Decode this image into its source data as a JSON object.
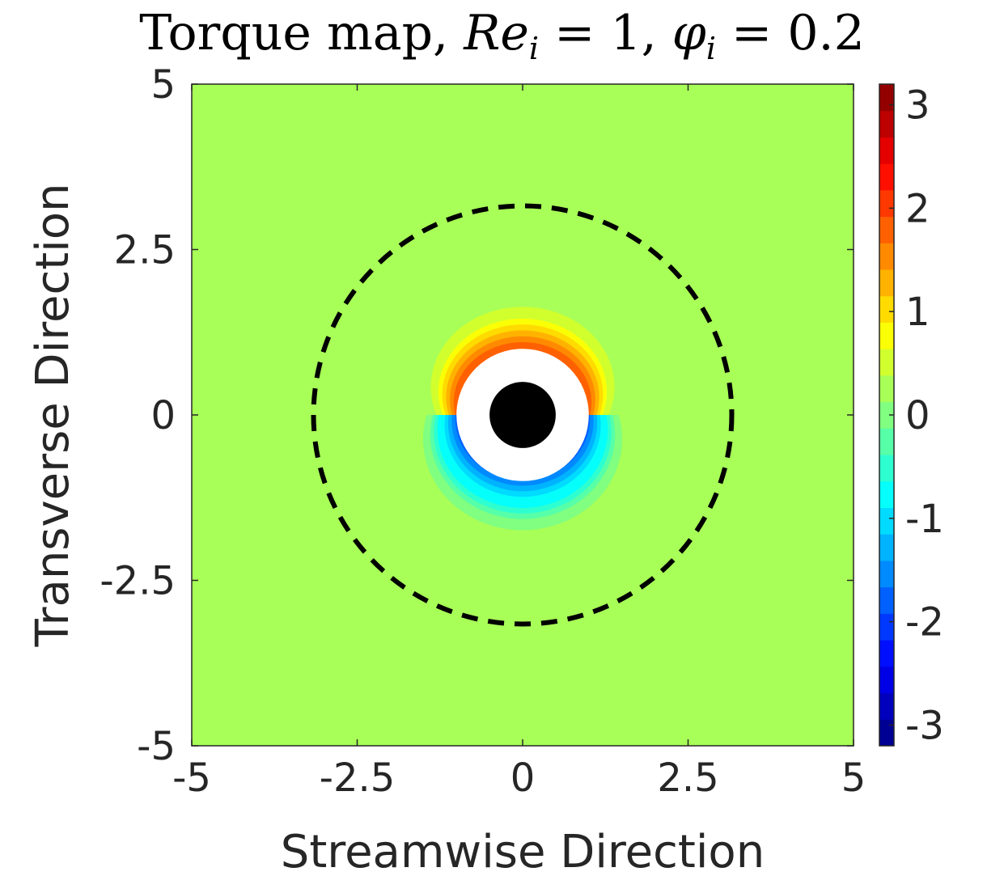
{
  "chart_data": {
    "type": "heatmap",
    "title": {
      "prefix": "Torque map, ",
      "re_symbol": "Re",
      "re_sub": "i",
      "re_value": " = 1, ",
      "phi_symbol": "φ",
      "phi_sub": "i",
      "phi_value": " = 0.2"
    },
    "xlabel": "Streamwise Direction",
    "ylabel": "Transverse Direction",
    "xlim": [
      -5,
      5
    ],
    "ylim": [
      -5,
      5
    ],
    "xticks": [
      {
        "value": -5,
        "label": "-5"
      },
      {
        "value": -2.5,
        "label": "-2.5"
      },
      {
        "value": 0,
        "label": "0"
      },
      {
        "value": 2.5,
        "label": "2.5"
      },
      {
        "value": 5,
        "label": "5"
      }
    ],
    "yticks": [
      {
        "value": -5,
        "label": "-5"
      },
      {
        "value": -2.5,
        "label": "-2.5"
      },
      {
        "value": 0,
        "label": "0"
      },
      {
        "value": 2.5,
        "label": "2.5"
      },
      {
        "value": 5,
        "label": "5"
      }
    ],
    "colorbar": {
      "range": [
        -3.2,
        3.2
      ],
      "ticks": [
        {
          "value": 3,
          "label": "3"
        },
        {
          "value": 2,
          "label": "2"
        },
        {
          "value": 1,
          "label": "1"
        },
        {
          "value": 0,
          "label": "0"
        },
        {
          "value": -1,
          "label": "-1"
        },
        {
          "value": -2,
          "label": "-2"
        },
        {
          "value": -3,
          "label": "-3"
        }
      ],
      "colormap": "jet",
      "levels": 25
    },
    "background_value": 0.15,
    "positive_lobe": {
      "center": [
        0,
        0.5
      ],
      "outer_radius": 1.6,
      "peak": 3.0,
      "region": "upper half around particle"
    },
    "negative_lobe": {
      "center": [
        0,
        -0.4
      ],
      "outer_radius": 1.9,
      "peak": -2.6,
      "region": "lower half around particle"
    },
    "excluded_disk_radius": 1.0,
    "particle_radius": 0.5,
    "dashed_circle_radius": 3.16,
    "colors": {
      "particle": "#000000",
      "excluded": "#ffffff",
      "dashed_circle": "#000000"
    }
  }
}
